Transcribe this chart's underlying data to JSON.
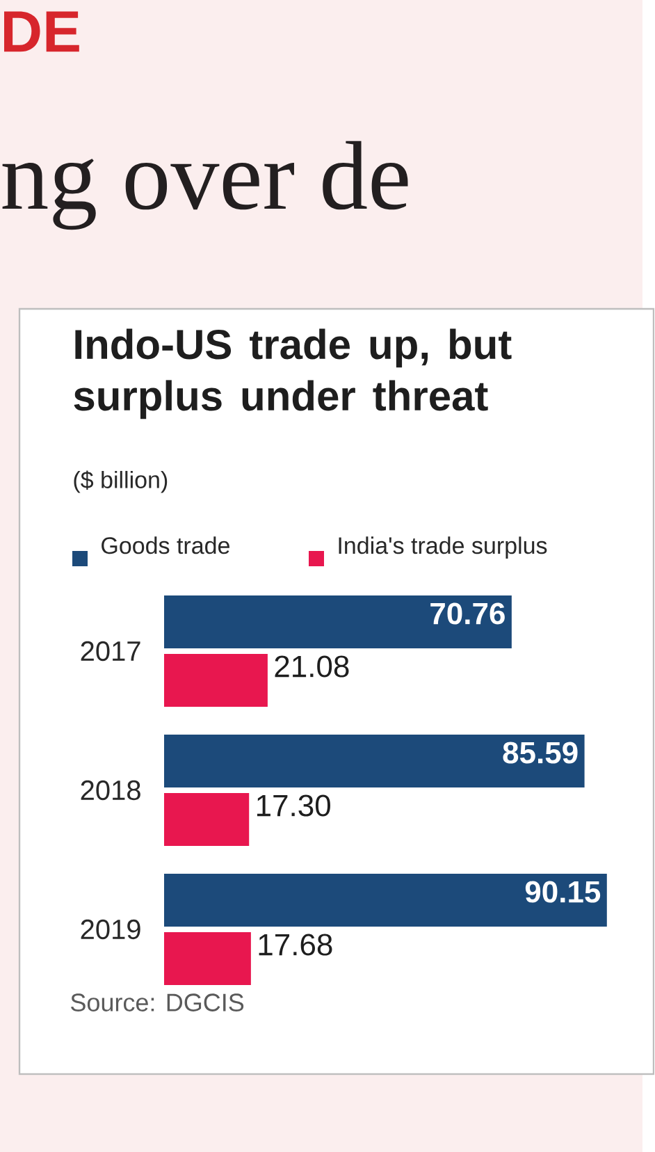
{
  "chart_data": {
    "type": "bar",
    "orientation": "horizontal",
    "title": "Indo-US trade up, but surplus under threat",
    "subtitle": "($ billion)",
    "categories": [
      "2017",
      "2018",
      "2019"
    ],
    "series": [
      {
        "name": "Goods trade",
        "color": "#1c4a7a",
        "values": [
          70.76,
          85.59,
          90.15
        ],
        "value_labels": [
          "70.76",
          "85.59",
          "90.15"
        ]
      },
      {
        "name": "India's trade surplus",
        "color": "#e8174f",
        "values": [
          21.08,
          17.3,
          17.68
        ],
        "value_labels": [
          "21.08",
          "17.30",
          "17.68"
        ]
      }
    ],
    "legend": "top left",
    "annotations": [
      "DE",
      "ng over de",
      "Source: DGCIS"
    ]
  }
}
